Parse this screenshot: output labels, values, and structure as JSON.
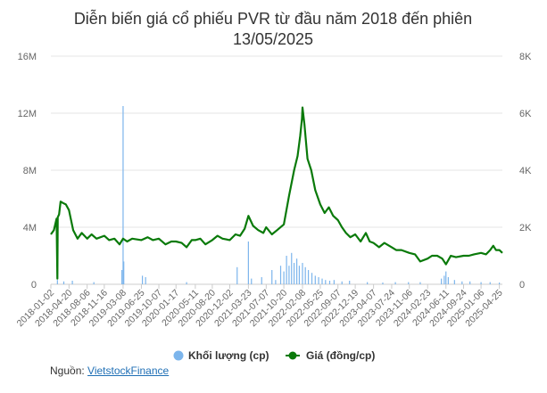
{
  "chart_data": {
    "type": "line",
    "title": [
      "Diễn biến giá cổ phiếu PVR từ đầu năm 2018 đến phiên",
      "13/05/2025"
    ],
    "x_tick_labels": [
      "2018-01-02",
      "2018-04-20",
      "2018-08-06",
      "2018-11-16",
      "2019-03-08",
      "2019-06-25",
      "2019-10-07",
      "2020-01-17",
      "2020-05-11",
      "2020-08-20",
      "2020-12-02",
      "2021-03-23",
      "2021-07-07",
      "2021-10-20",
      "2022-02-08",
      "2022-05-25",
      "2022-09-07",
      "2022-12-19",
      "2023-04-07",
      "2023-07-24",
      "2023-11-06",
      "2024-02-23",
      "2024-06-11",
      "2024-09-24",
      "2025-01-06",
      "2025-04-25"
    ],
    "y_left": {
      "label": "",
      "ticks": [
        "0",
        "4M",
        "8M",
        "12M",
        "16M"
      ],
      "ylim": [
        0,
        16000000
      ]
    },
    "y_right": {
      "label": "",
      "ticks": [
        "0",
        "2K",
        "4K",
        "6K",
        "8K"
      ],
      "ylim": [
        0,
        8000
      ]
    },
    "grid": true,
    "legend_position": "bottom",
    "series": [
      {
        "name": "Khối lượng (cp)",
        "type": "column",
        "axis": "left",
        "color": "#7cb5ec",
        "x": [
          "2018-02-10",
          "2018-03-20",
          "2018-05-10",
          "2018-09-15",
          "2019-03-01",
          "2019-03-08",
          "2019-03-12",
          "2019-07-01",
          "2019-07-20",
          "2020-03-20",
          "2021-01-15",
          "2021-03-23",
          "2021-04-10",
          "2021-06-10",
          "2021-08-10",
          "2021-09-01",
          "2021-10-01",
          "2021-10-20",
          "2021-11-05",
          "2021-11-20",
          "2021-12-05",
          "2021-12-20",
          "2022-01-05",
          "2022-01-20",
          "2022-02-08",
          "2022-02-25",
          "2022-03-15",
          "2022-04-05",
          "2022-04-25",
          "2022-05-15",
          "2022-06-05",
          "2022-06-25",
          "2022-07-20",
          "2022-08-15",
          "2022-10-01",
          "2022-11-15",
          "2023-03-01",
          "2023-06-01",
          "2023-08-15",
          "2023-11-01",
          "2024-01-10",
          "2024-05-15",
          "2024-06-01",
          "2024-06-11",
          "2024-06-25",
          "2024-08-01",
          "2024-09-15",
          "2024-11-01",
          "2025-01-06",
          "2025-03-01",
          "2025-04-25"
        ],
        "values": [
          300000,
          200000,
          250000,
          150000,
          1000000,
          12500000,
          1600000,
          600000,
          500000,
          150000,
          1200000,
          3000000,
          400000,
          500000,
          1000000,
          300000,
          1300000,
          900000,
          2000000,
          1300000,
          2200000,
          1500000,
          1800000,
          1300000,
          1500000,
          1200000,
          1000000,
          800000,
          600000,
          500000,
          400000,
          300000,
          250000,
          300000,
          200000,
          250000,
          150000,
          120000,
          150000,
          150000,
          150000,
          400000,
          600000,
          900000,
          500000,
          300000,
          200000,
          200000,
          150000,
          150000,
          120000
        ]
      },
      {
        "name": "Giá (đồng/cp)",
        "type": "line",
        "axis": "right",
        "color": "#0a7a0a",
        "x": [
          "2018-01-02",
          "2018-01-20",
          "2018-02-05",
          "2018-02-10",
          "2018-02-12",
          "2018-02-20",
          "2018-03-01",
          "2018-03-15",
          "2018-04-01",
          "2018-04-20",
          "2018-05-15",
          "2018-06-10",
          "2018-07-05",
          "2018-08-06",
          "2018-09-01",
          "2018-10-01",
          "2018-11-16",
          "2018-12-15",
          "2019-01-15",
          "2019-02-15",
          "2019-03-08",
          "2019-04-01",
          "2019-05-01",
          "2019-06-25",
          "2019-08-01",
          "2019-09-01",
          "2019-10-07",
          "2019-11-15",
          "2019-12-20",
          "2020-01-17",
          "2020-02-20",
          "2020-03-20",
          "2020-04-20",
          "2020-05-11",
          "2020-06-10",
          "2020-07-10",
          "2020-08-20",
          "2020-09-20",
          "2020-10-20",
          "2020-12-02",
          "2021-01-05",
          "2021-02-01",
          "2021-03-01",
          "2021-03-23",
          "2021-04-20",
          "2021-05-20",
          "2021-06-20",
          "2021-07-07",
          "2021-08-10",
          "2021-09-10",
          "2021-10-20",
          "2021-11-20",
          "2021-12-20",
          "2022-01-10",
          "2022-01-25",
          "2022-02-05",
          "2022-02-08",
          "2022-02-20",
          "2022-03-10",
          "2022-04-01",
          "2022-04-25",
          "2022-05-25",
          "2022-06-20",
          "2022-07-15",
          "2022-08-10",
          "2022-09-07",
          "2022-10-01",
          "2022-10-25",
          "2022-11-20",
          "2022-12-19",
          "2023-01-20",
          "2023-02-20",
          "2023-03-15",
          "2023-04-07",
          "2023-05-10",
          "2023-06-10",
          "2023-07-24",
          "2023-08-20",
          "2023-09-20",
          "2023-11-06",
          "2023-12-10",
          "2024-01-10",
          "2024-02-23",
          "2024-03-20",
          "2024-04-20",
          "2024-05-20",
          "2024-06-11",
          "2024-07-10",
          "2024-08-10",
          "2024-09-24",
          "2024-10-25",
          "2024-11-25",
          "2025-01-06",
          "2025-02-05",
          "2025-03-01",
          "2025-03-20",
          "2025-04-05",
          "2025-04-25",
          "2025-05-13"
        ],
        "values": [
          1750,
          1900,
          2300,
          200,
          2350,
          2450,
          2900,
          2850,
          2800,
          2600,
          1900,
          1600,
          1800,
          1600,
          1750,
          1600,
          1700,
          1550,
          1600,
          1400,
          1600,
          1500,
          1600,
          1550,
          1650,
          1550,
          1600,
          1400,
          1500,
          1500,
          1450,
          1300,
          1550,
          1550,
          1600,
          1400,
          1550,
          1700,
          1600,
          1550,
          1750,
          1700,
          1950,
          2400,
          2050,
          1900,
          1800,
          2000,
          1750,
          1900,
          2100,
          3100,
          4000,
          4500,
          5200,
          5800,
          6200,
          5600,
          4400,
          4000,
          3300,
          2800,
          2500,
          2700,
          2400,
          2250,
          2000,
          1800,
          1650,
          1750,
          1500,
          1800,
          1500,
          1450,
          1300,
          1450,
          1300,
          1200,
          1200,
          1100,
          1050,
          800,
          900,
          1000,
          1000,
          900,
          700,
          1000,
          950,
          1000,
          1000,
          1050,
          1100,
          1050,
          1200,
          1350,
          1200,
          1200,
          1100
        ]
      }
    ]
  },
  "source": {
    "label": "Nguồn:",
    "link_text": "VietstockFinance"
  }
}
